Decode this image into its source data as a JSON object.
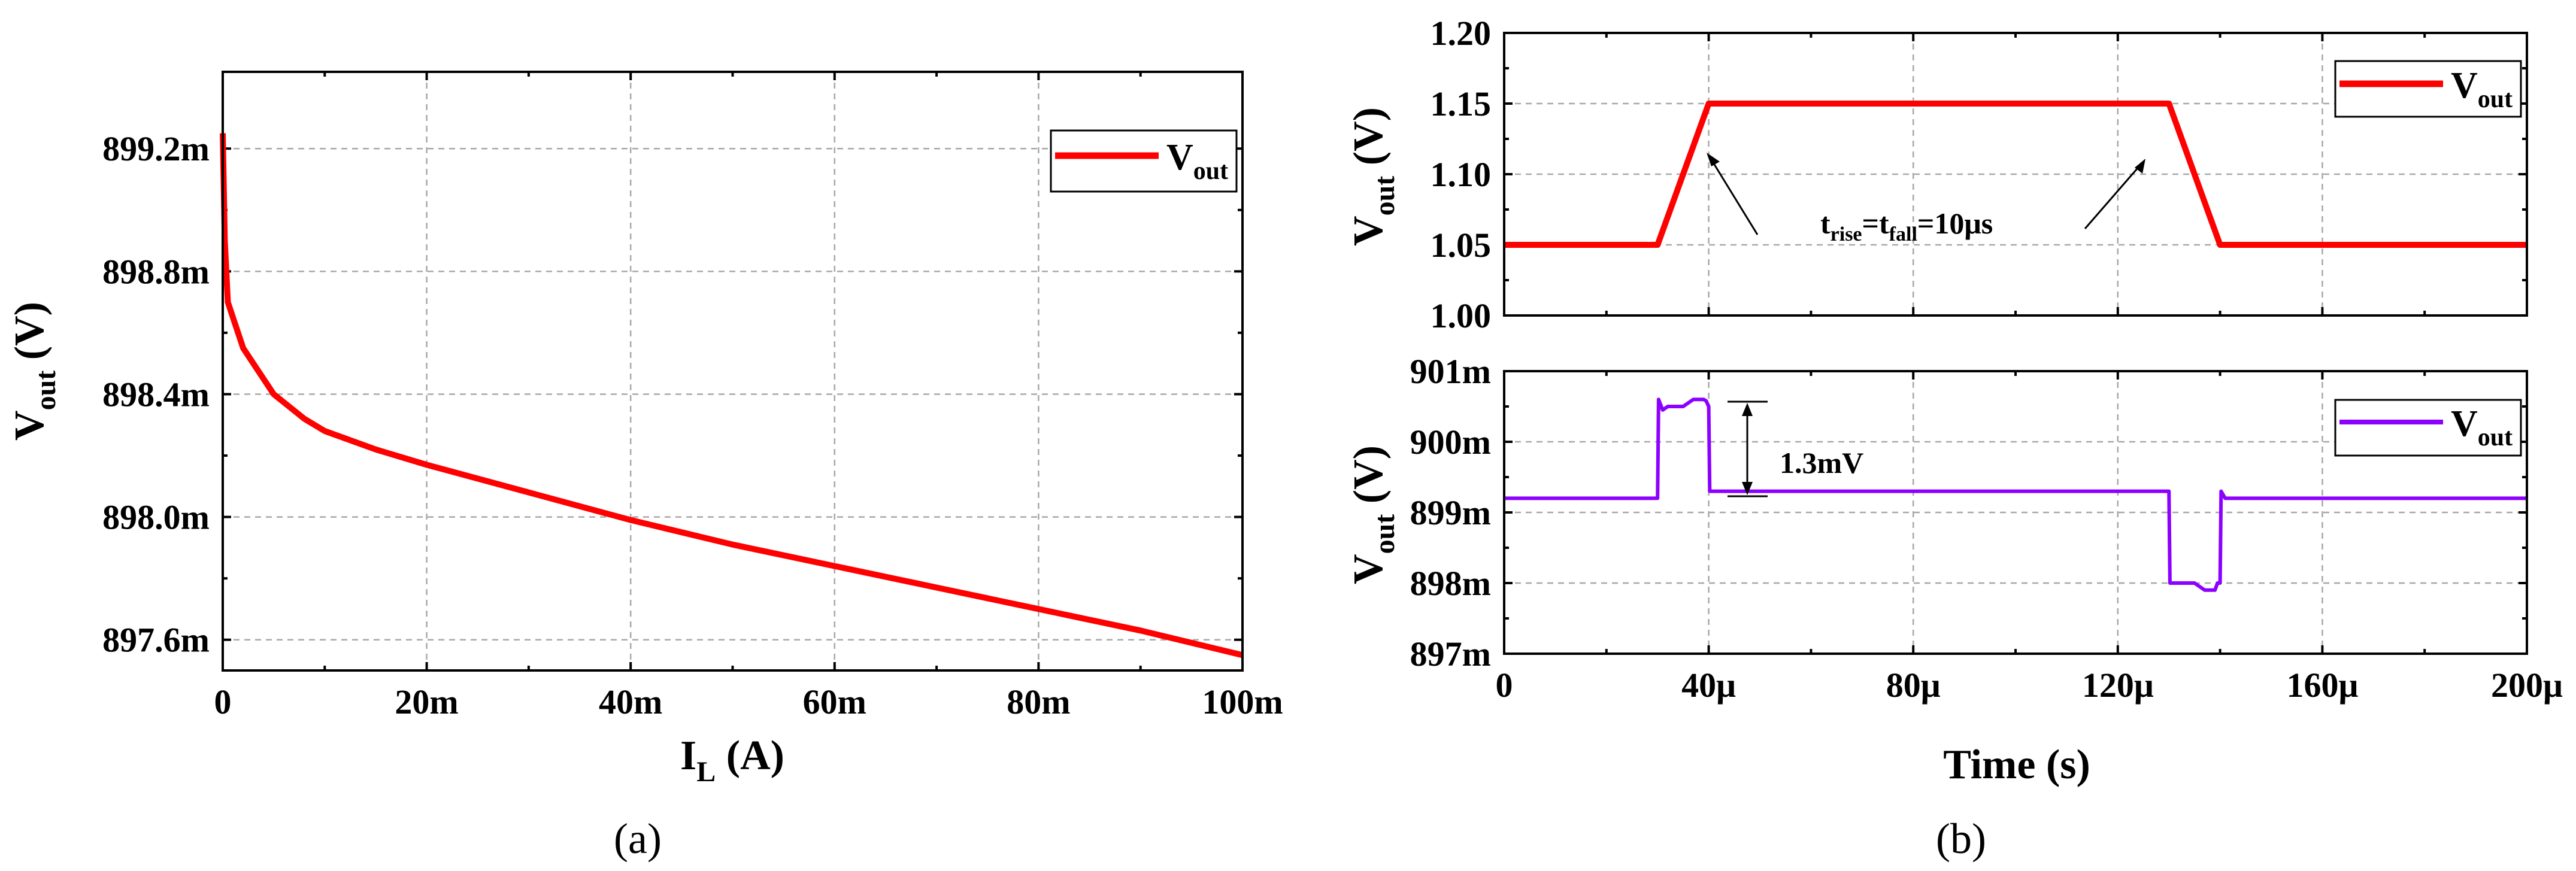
{
  "chart_data": [
    {
      "type": "line",
      "id": "a",
      "subtitle": "(a)",
      "xlabel": "I",
      "xlabel_sub": "L",
      "xlabel_unit": " (A)",
      "ylabel": "V",
      "ylabel_sub": "out",
      "ylabel_unit": " (V)",
      "xlim": [
        0,
        0.1
      ],
      "ylim": [
        0.8975,
        0.89945
      ],
      "xticks": [
        0,
        0.02,
        0.04,
        0.06,
        0.08,
        0.1
      ],
      "xtick_labels": [
        "0",
        "20m",
        "40m",
        "60m",
        "80m",
        "100m"
      ],
      "yticks": [
        0.8976,
        0.898,
        0.8984,
        0.8988,
        0.8992
      ],
      "ytick_labels": [
        "897.6m",
        "898.0m",
        "898.4m",
        "898.8m",
        "899.2m"
      ],
      "grid": true,
      "legend_position": "top-right",
      "series": [
        {
          "name": "V",
          "name_sub": "out",
          "color": "#ff0000",
          "x": [
            0,
            0.0002,
            0.0005,
            0.001,
            0.002,
            0.003,
            0.005,
            0.008,
            0.01,
            0.015,
            0.02,
            0.03,
            0.04,
            0.05,
            0.06,
            0.07,
            0.08,
            0.09,
            0.1
          ],
          "y": [
            0.89925,
            0.8989,
            0.8987,
            0.89865,
            0.89855,
            0.8985,
            0.8984,
            0.89832,
            0.89828,
            0.89822,
            0.89817,
            0.89808,
            0.89799,
            0.89791,
            0.89784,
            0.89777,
            0.8977,
            0.89763,
            0.89755
          ]
        }
      ]
    },
    {
      "type": "line",
      "id": "b-top",
      "ylabel": "V",
      "ylabel_sub": "out",
      "ylabel_unit": " (V)",
      "xlim": [
        0,
        0.0002
      ],
      "ylim": [
        1.0,
        1.2
      ],
      "xticks": [
        0,
        4e-05,
        8e-05,
        0.00012,
        0.00016,
        0.0002
      ],
      "yticks": [
        1.0,
        1.05,
        1.1,
        1.15,
        1.2
      ],
      "ytick_labels": [
        "1.00",
        "1.05",
        "1.10",
        "1.15",
        "1.20"
      ],
      "grid": true,
      "legend_position": "top-right",
      "annotation": {
        "text_t": "t",
        "text_rise": "rise",
        "text_eq": "=t",
        "text_fall": "fall",
        "text_val": "=10μs"
      },
      "series": [
        {
          "name": "V",
          "name_sub": "out",
          "color": "#ff0000",
          "x": [
            0,
            3e-05,
            4e-05,
            0.00013,
            0.00014,
            0.0002
          ],
          "y": [
            1.05,
            1.05,
            1.15,
            1.15,
            1.05,
            1.05
          ]
        }
      ]
    },
    {
      "type": "line",
      "id": "b-bottom",
      "subtitle": "(b)",
      "xlabel": "Time (s)",
      "ylabel": "V",
      "ylabel_sub": "out",
      "ylabel_unit": " (V)",
      "xlim": [
        0,
        0.0002
      ],
      "ylim": [
        0.897,
        0.901
      ],
      "xticks": [
        0,
        4e-05,
        8e-05,
        0.00012,
        0.00016,
        0.0002
      ],
      "xtick_labels": [
        "0",
        "40μ",
        "80μ",
        "120μ",
        "160μ",
        "200μ"
      ],
      "yticks": [
        0.897,
        0.898,
        0.899,
        0.9,
        0.901
      ],
      "ytick_labels": [
        "897m",
        "898m",
        "899m",
        "900m",
        "901m"
      ],
      "grid": true,
      "legend_position": "top-right",
      "annotation": {
        "text": "1.3mV"
      },
      "series": [
        {
          "name": "V",
          "name_sub": "out",
          "color": "#8c00ff",
          "x": [
            0,
            3e-05,
            3.02e-05,
            3.1e-05,
            3.2e-05,
            3.4e-05,
            3.5e-05,
            3.7e-05,
            3.9e-05,
            3.95e-05,
            4e-05,
            4.02e-05,
            4.1e-05,
            0.00013,
            0.0001302,
            0.000131,
            0.000132,
            0.000135,
            0.000137,
            0.000139,
            0.0001395,
            0.00014,
            0.0001402,
            0.000141,
            0.0002
          ],
          "y": [
            0.8992,
            0.8992,
            0.9006,
            0.90045,
            0.9005,
            0.9005,
            0.9005,
            0.9006,
            0.9006,
            0.90058,
            0.9005,
            0.8993,
            0.8993,
            0.8993,
            0.898,
            0.898,
            0.898,
            0.898,
            0.8979,
            0.8979,
            0.898,
            0.898,
            0.8993,
            0.8992,
            0.8992
          ]
        }
      ]
    }
  ]
}
